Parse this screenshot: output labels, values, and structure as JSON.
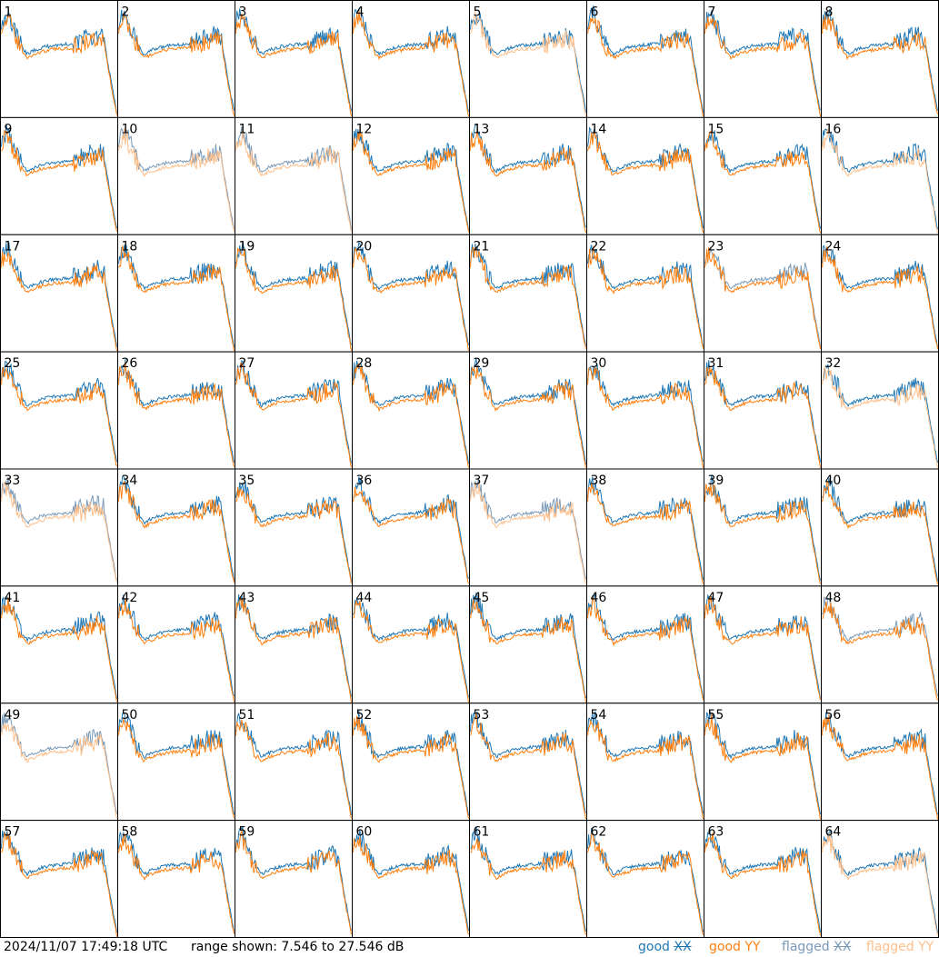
{
  "footer": {
    "timestamp": "2024/11/07 17:49:18 UTC",
    "range_text": "range shown: 7.546 to 27.546 dB"
  },
  "legend": [
    {
      "status": "good",
      "pol": "XX",
      "color": "#1f77b4"
    },
    {
      "status": "good",
      "pol": "YY",
      "color": "#ff7f0e"
    },
    {
      "status": "flagged",
      "pol": "XX",
      "color": "#7a9ab8"
    },
    {
      "status": "flagged",
      "pol": "YY",
      "color": "#ffbf8a"
    }
  ],
  "chart_data": {
    "type": "line",
    "description_units": "dB",
    "ylim": [
      7.546,
      27.546
    ],
    "panel_labels": [
      "1",
      "2",
      "3",
      "4",
      "5",
      "6",
      "7",
      "8",
      "9",
      "10",
      "11",
      "12",
      "13",
      "14",
      "15",
      "16",
      "17",
      "18",
      "19",
      "20",
      "21",
      "22",
      "23",
      "24",
      "25",
      "26",
      "27",
      "28",
      "29",
      "30",
      "31",
      "32",
      "33",
      "34",
      "35",
      "36",
      "37",
      "38",
      "39",
      "40",
      "41",
      "42",
      "43",
      "44",
      "45",
      "46",
      "47",
      "48",
      "49",
      "50",
      "51",
      "52",
      "53",
      "54",
      "55",
      "56",
      "57",
      "58",
      "59",
      "60",
      "61",
      "62",
      "63",
      "64"
    ],
    "flags": {
      "flagged_xx": [
        "10",
        "11",
        "23",
        "33",
        "37",
        "48",
        "49"
      ],
      "flagged_yy": [
        "5",
        "10",
        "11",
        "16",
        "32",
        "33",
        "37",
        "49",
        "64"
      ]
    },
    "representative_profile_db": [
      23.5,
      24.5,
      22.0,
      19.5,
      18.0,
      18.6,
      19.0,
      19.3,
      19.5,
      19.6,
      19.7,
      19.8,
      20.0,
      20.3,
      20.8,
      21.0,
      20.5,
      14.0,
      8.0
    ]
  }
}
